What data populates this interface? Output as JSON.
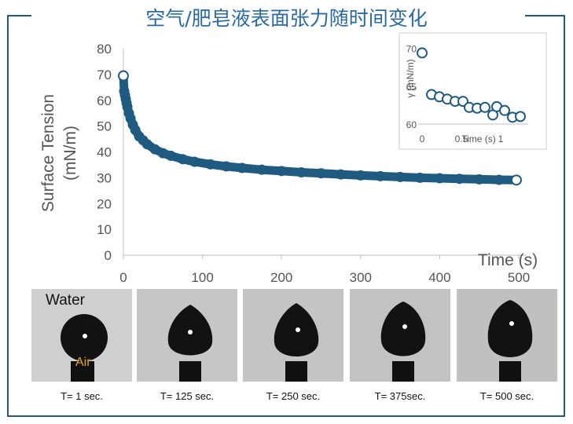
{
  "title": "空气/肥皂液表面张力随时间变化",
  "colors": {
    "series": "#1f5a80",
    "frame": "#1f5a80",
    "title": "#2a6aa3",
    "axis_text": "#555555"
  },
  "chart_data": [
    {
      "type": "scatter",
      "title": "",
      "xlabel": "Time (s)",
      "ylabel": "Surface Tension (mN/m)",
      "ylabel_lines": [
        "Surface Tension",
        "(mN/m)"
      ],
      "xlim": [
        0,
        500
      ],
      "ylim": [
        0,
        80
      ],
      "xticks": [
        "0",
        "100",
        "200",
        "300",
        "400",
        "500"
      ],
      "yticks": [
        "0",
        "10",
        "20",
        "30",
        "40",
        "50",
        "60",
        "70",
        "80"
      ],
      "grid": false,
      "series": [
        {
          "x": [
            0,
            1,
            2,
            3,
            4,
            5,
            7,
            9,
            12,
            15,
            20,
            25,
            30,
            40,
            50,
            60,
            75,
            90,
            110,
            130,
            150,
            175,
            200,
            225,
            250,
            275,
            300,
            325,
            350,
            375,
            400,
            425,
            450,
            475,
            497
          ],
          "y": [
            69.5,
            63.5,
            62,
            60.5,
            59,
            57.5,
            55,
            53,
            50.5,
            48.5,
            46,
            44.5,
            43,
            41,
            39.5,
            38.5,
            37.2,
            36.2,
            35.2,
            34.4,
            33.8,
            33.1,
            32.6,
            32.1,
            31.7,
            31.3,
            30.9,
            30.6,
            30.3,
            30,
            29.8,
            29.6,
            29.4,
            29.2,
            29.1
          ]
        }
      ]
    },
    {
      "type": "scatter",
      "title": "",
      "xlabel": "Time (s)",
      "ylabel": "γ (mN/m)",
      "xlim": [
        -0.05,
        1.35
      ],
      "ylim": [
        60,
        71
      ],
      "xticks": [
        {
          "v": 0,
          "t": "0"
        },
        {
          "v": 0.5,
          "t": "0.5"
        },
        {
          "v": 1,
          "t": "1"
        }
      ],
      "yticks": [
        {
          "v": 60,
          "t": "60"
        },
        {
          "v": 65,
          "t": "65"
        },
        {
          "v": 70,
          "t": "70"
        }
      ],
      "grid": false,
      "series": [
        {
          "x": [
            0,
            0.12,
            0.22,
            0.32,
            0.42,
            0.52,
            0.6,
            0.7,
            0.8,
            0.9,
            0.95,
            1.05,
            1.15,
            1.25
          ],
          "y": [
            69.4,
            63.9,
            63.6,
            63.3,
            63.0,
            63.0,
            62.2,
            62.1,
            62.2,
            61.2,
            62.3,
            61.8,
            60.9,
            61.0
          ]
        }
      ]
    }
  ],
  "photos": {
    "label_water": "Water",
    "label_air": "Air",
    "captions": [
      "T= 1 sec.",
      "T= 125 sec.",
      "T= 250 sec.",
      "T= 375sec.",
      "T= 500 sec."
    ]
  }
}
